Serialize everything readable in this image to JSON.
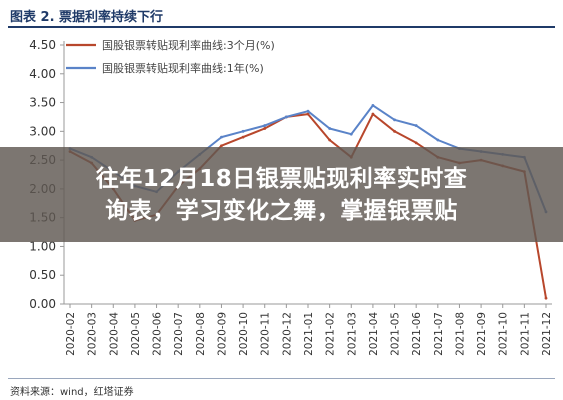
{
  "figure": {
    "title": "图表 2. 票据利率持续下行",
    "source": "资料来源：wind，红塔证券"
  },
  "overlay": {
    "line1": "往年12月18日银票贴现利率实时查",
    "line2": "询表，学习变化之舞，掌握银票贴"
  },
  "chart_data": {
    "type": "line",
    "title": "",
    "xlabel": "",
    "ylabel": "",
    "ylim": [
      0,
      4.5
    ],
    "yticks": [
      "4.50",
      "4.00",
      "3.50",
      "3.00",
      "2.50",
      "2.00",
      "1.50",
      "1.00",
      "0.50",
      "0.00"
    ],
    "x": [
      "2020-02",
      "2020-03",
      "2020-04",
      "2020-05",
      "2020-06",
      "2020-07",
      "2020-08",
      "2020-09",
      "2020-10",
      "2020-11",
      "2020-12",
      "2021-01",
      "2021-02",
      "2021-03",
      "2021-04",
      "2021-05",
      "2021-06",
      "2021-07",
      "2021-08",
      "2021-09",
      "2021-10",
      "2021-11",
      "2021-12"
    ],
    "legend_position": "top-left",
    "grid": false,
    "series": [
      {
        "name": "国股银票转贴现利率曲线:3个月(%)",
        "color": "#b8472c",
        "values": [
          2.65,
          2.45,
          2.0,
          1.45,
          1.55,
          2.05,
          2.35,
          2.75,
          2.9,
          3.05,
          3.25,
          3.3,
          2.85,
          2.55,
          3.3,
          3.0,
          2.8,
          2.55,
          2.45,
          2.5,
          2.4,
          2.3,
          0.1
        ]
      },
      {
        "name": "国股银票转贴现利率曲线:1年(%)",
        "color": "#5a83c8",
        "values": [
          2.7,
          2.55,
          2.3,
          2.05,
          1.95,
          2.3,
          2.6,
          2.9,
          3.0,
          3.1,
          3.25,
          3.35,
          3.05,
          2.95,
          3.45,
          3.2,
          3.1,
          2.85,
          2.7,
          2.65,
          2.6,
          2.55,
          1.6
        ]
      }
    ]
  }
}
